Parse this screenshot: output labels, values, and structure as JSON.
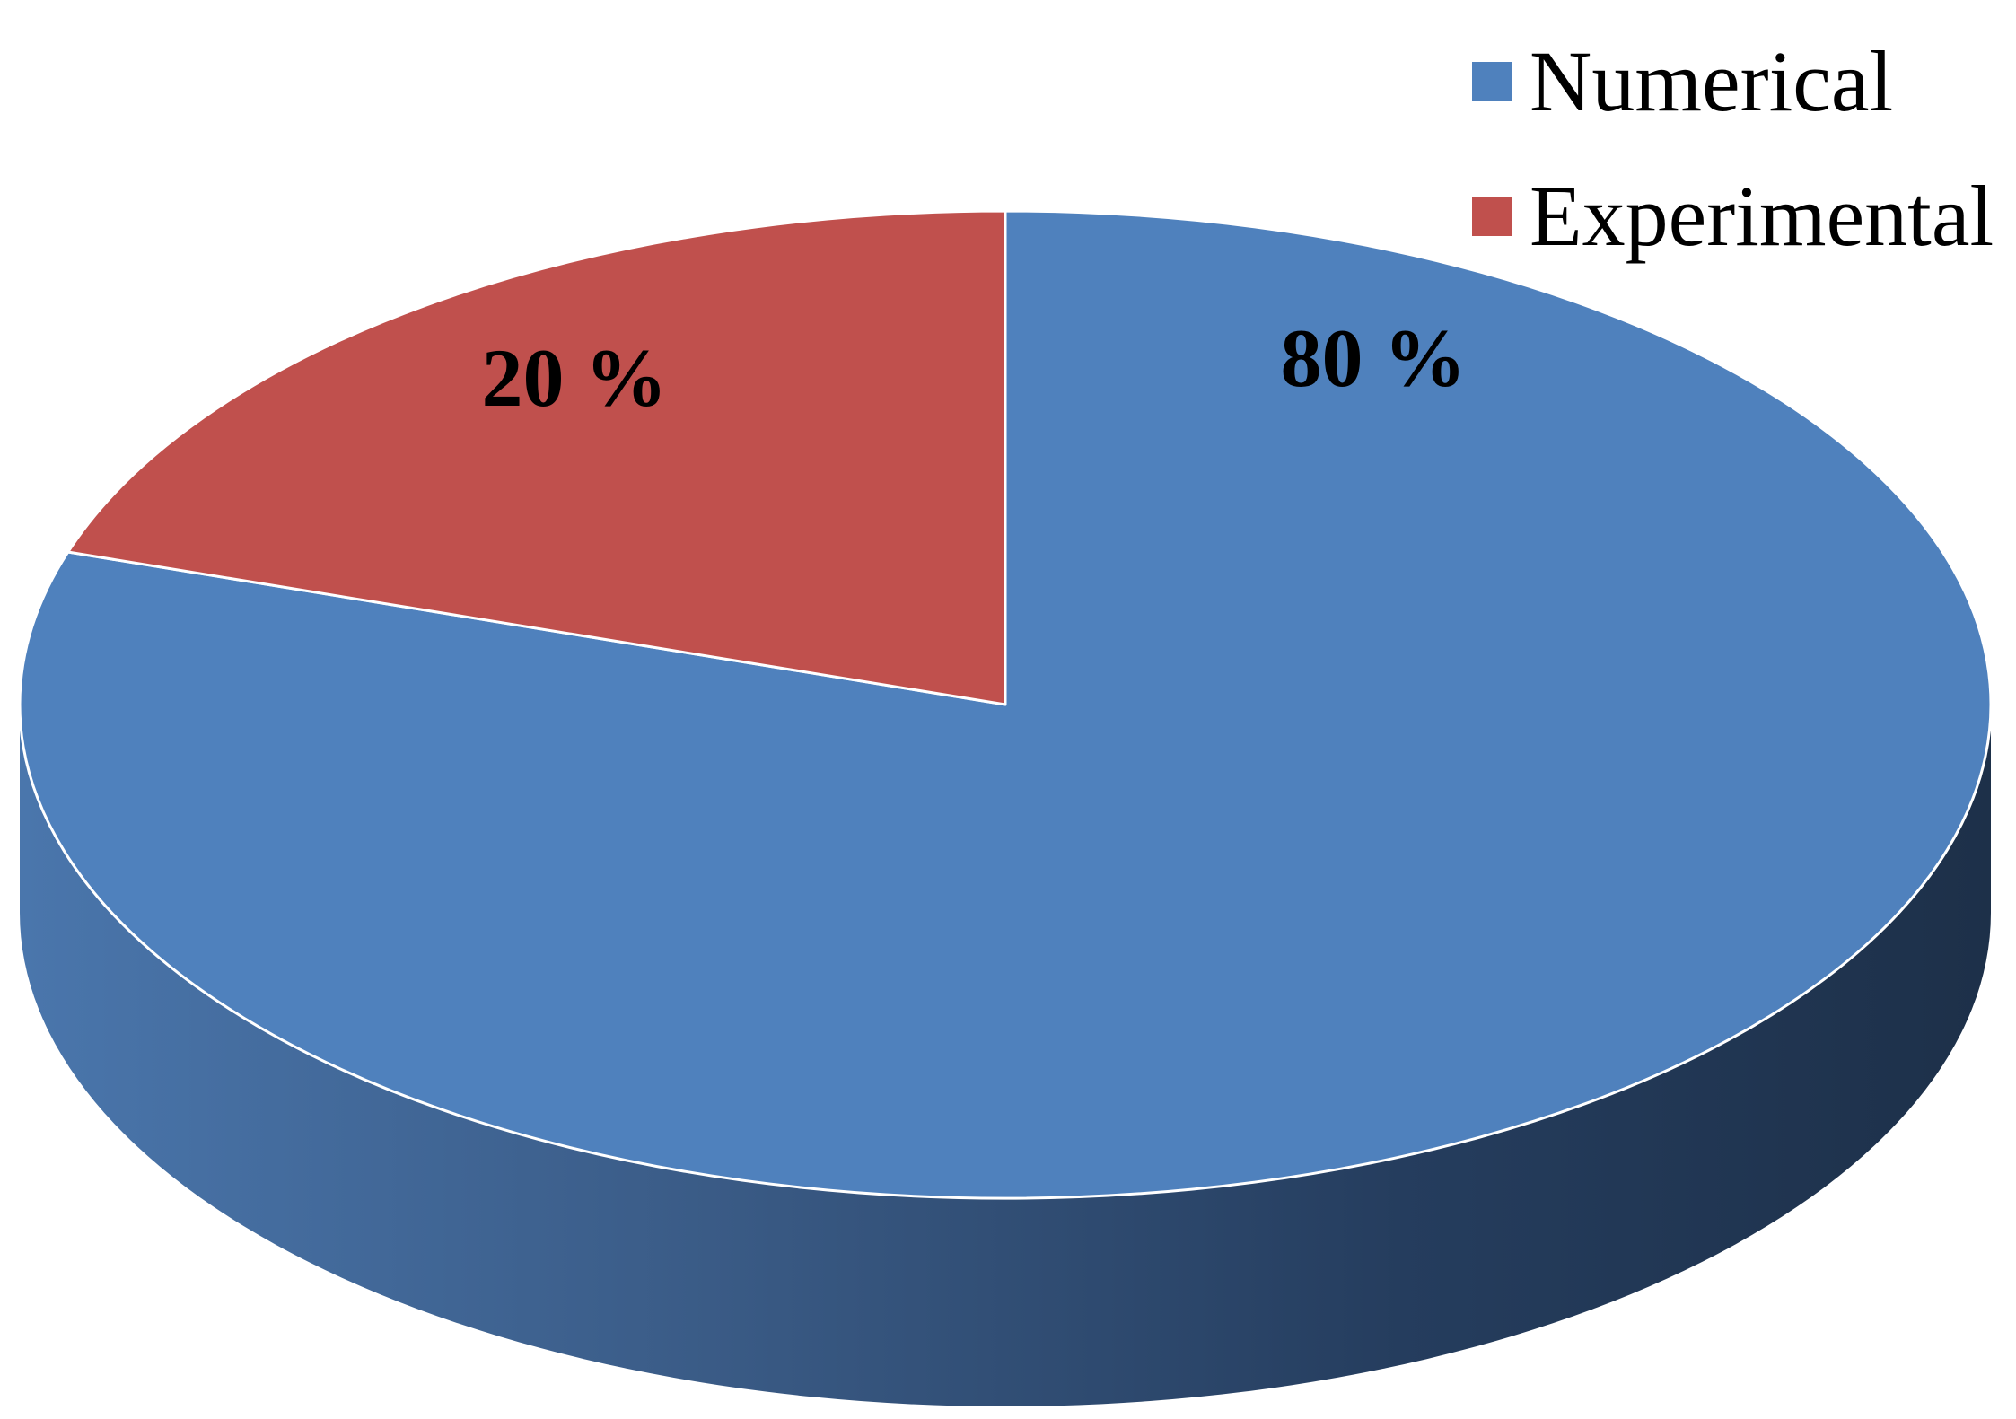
{
  "chart_data": {
    "type": "pie",
    "style": "3d",
    "legend_placement": "top-right",
    "slices": [
      {
        "name": "Numerical",
        "value": 80,
        "label": "80 %",
        "color": "#4F81BD"
      },
      {
        "name": "Experimental",
        "value": 20,
        "label": "20 %",
        "color": "#C0504D"
      }
    ]
  }
}
